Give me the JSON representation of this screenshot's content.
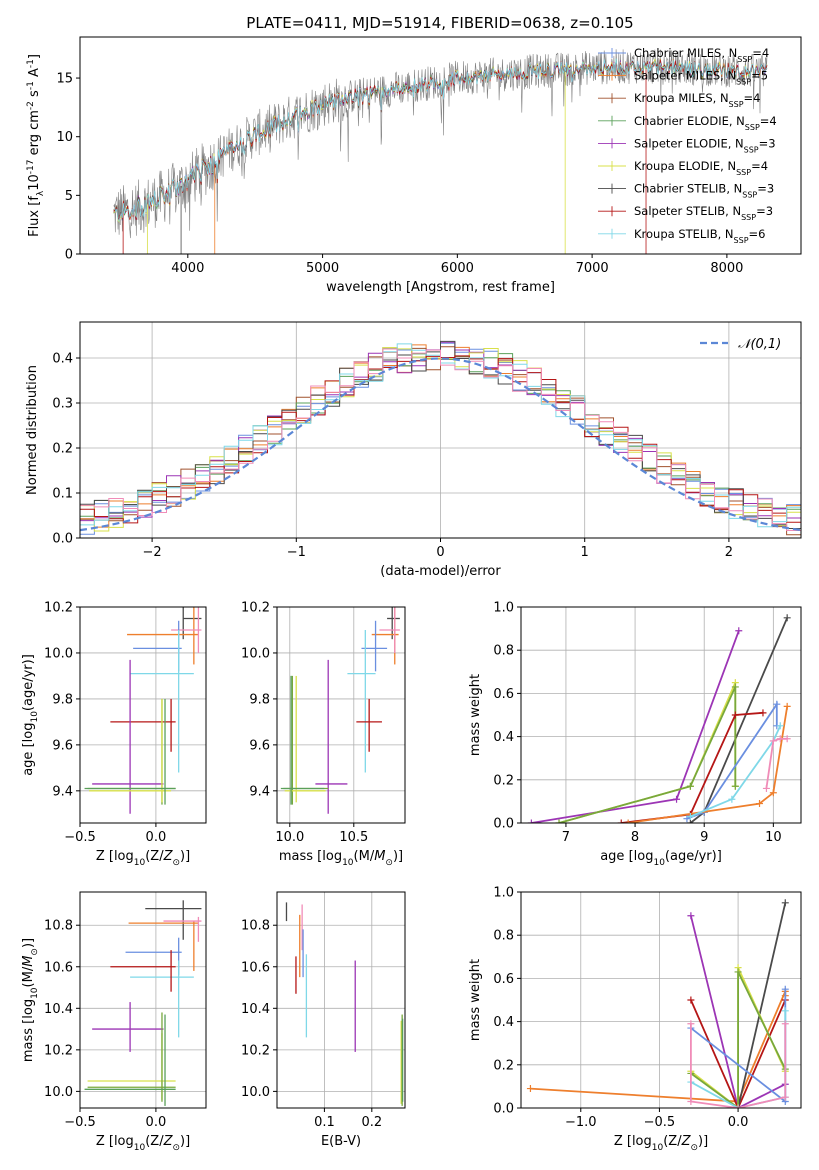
{
  "title": "PLATE=0411, MJD=51914, FIBERID=0638, z=0.105",
  "colors": {
    "spectrum": "#808080",
    "gauss": "#5b87d6",
    "grid": "#b0b0b0",
    "models": [
      "#6a8fe0",
      "#ee7f2d",
      "#a0522d",
      "#5aa05a",
      "#9c35b5",
      "#d8e04a",
      "#4a4a4a",
      "#b51616",
      "#7fd8e8"
    ],
    "extra": [
      "#f08cb8",
      "#78a83c"
    ]
  },
  "chart_data": [
    {
      "id": "spectrum",
      "type": "line",
      "xlabel": "wavelength [Angstrom, rest frame]",
      "ylabel": "Flux [f_λ10^-17 erg cm^-2 s^-1 A^-1]",
      "xlim": [
        3200,
        8550
      ],
      "ylim": [
        0,
        18.5
      ],
      "xticks": [
        4000,
        5000,
        6000,
        7000,
        8000
      ],
      "yticks": [
        0,
        5,
        10,
        15
      ],
      "legend_position": "upper-right",
      "legend": [
        {
          "base": "Chabrier MILES, N",
          "sub": "SSP",
          "tail": "=4"
        },
        {
          "base": "Salpeter MILES, N",
          "sub": "SSP",
          "tail": "=5"
        },
        {
          "base": "Kroupa MILES, N",
          "sub": "SSP",
          "tail": "=4"
        },
        {
          "base": "Chabrier ELODIE, N",
          "sub": "SSP",
          "tail": "=4"
        },
        {
          "base": "Salpeter ELODIE, N",
          "sub": "SSP",
          "tail": "=3"
        },
        {
          "base": "Kroupa ELODIE, N",
          "sub": "SSP",
          "tail": "=4"
        },
        {
          "base": "Chabrier STELIB, N",
          "sub": "SSP",
          "tail": "=3"
        },
        {
          "base": "Salpeter STELIB, N",
          "sub": "SSP",
          "tail": "=3"
        },
        {
          "base": "Kroupa STELIB, N",
          "sub": "SSP",
          "tail": "=6"
        }
      ],
      "continuum": {
        "x": [
          3450,
          3600,
          3800,
          3950,
          4100,
          4300,
          4500,
          4800,
          5000,
          5200,
          5500,
          5800,
          6000,
          6300,
          6600,
          7000,
          7300,
          7600,
          8000,
          8300
        ],
        "y": [
          3.4,
          3.8,
          4.8,
          5.8,
          7.0,
          8.8,
          10.2,
          11.8,
          12.8,
          13.4,
          14.0,
          14.6,
          15.0,
          15.3,
          15.6,
          15.9,
          16.0,
          15.9,
          15.7,
          15.5
        ]
      }
    },
    {
      "id": "residuals",
      "type": "histogram",
      "xlabel": "(data-model)/error",
      "ylabel": "Normed distribution",
      "xlim": [
        -2.5,
        2.5
      ],
      "ylim": [
        0,
        0.48
      ],
      "xticks": [
        -2,
        -1,
        0,
        1,
        2
      ],
      "yticks": [
        0.0,
        0.1,
        0.2,
        0.3,
        0.4
      ],
      "legend": "𝒩(0,1)",
      "legend_position": "upper-right",
      "bin_width": 0.1
    },
    {
      "id": "age-vs-Z",
      "type": "errorbar",
      "xlabel": "Z [log10(Z/Z⊙)]",
      "ylabel": "age [log10(age/yr)]",
      "xlim": [
        -0.5,
        0.33
      ],
      "ylim": [
        9.26,
        10.2
      ],
      "xticks": [
        -0.5,
        0.0
      ],
      "yticks": [
        9.4,
        9.6,
        9.8,
        10.0,
        10.2
      ],
      "points": [
        {
          "c": 6,
          "x": 0.18,
          "xe": [
            0.18,
            0.3
          ],
          "y": 10.15,
          "ye": [
            10.06,
            10.2
          ]
        },
        {
          "c": 1,
          "x": 0.25,
          "xe": [
            -0.19,
            0.28
          ],
          "y": 10.08,
          "ye": [
            9.95,
            10.2
          ]
        },
        {
          "c": 9,
          "x": 0.28,
          "xe": [
            0.1,
            0.3
          ],
          "y": 10.1,
          "ye": [
            10.0,
            10.2
          ]
        },
        {
          "c": 0,
          "x": 0.15,
          "xe": [
            -0.15,
            0.17
          ],
          "y": 10.02,
          "ye": [
            9.92,
            10.14
          ]
        },
        {
          "c": 8,
          "x": 0.15,
          "xe": [
            -0.17,
            0.25
          ],
          "y": 9.91,
          "ye": [
            9.48,
            10.1
          ]
        },
        {
          "c": 7,
          "x": 0.1,
          "xe": [
            -0.3,
            0.13
          ],
          "y": 9.7,
          "ye": [
            9.57,
            9.8
          ]
        },
        {
          "c": 4,
          "x": -0.17,
          "xe": [
            -0.42,
            0.05
          ],
          "y": 9.43,
          "ye": [
            9.3,
            9.97
          ]
        },
        {
          "c": 10,
          "x": 0.04,
          "xe": [
            -0.45,
            0.13
          ],
          "y": 9.41,
          "ye": [
            9.34,
            9.8
          ]
        },
        {
          "c": 5,
          "x": 0.04,
          "xe": [
            -0.44,
            0.1
          ],
          "y": 9.4,
          "ye": [
            9.35,
            9.8
          ]
        },
        {
          "c": 3,
          "x": 0.06,
          "xe": [
            -0.47,
            0.13
          ],
          "y": 9.41,
          "ye": [
            9.34,
            9.8
          ]
        }
      ]
    },
    {
      "id": "age-vs-mass",
      "type": "errorbar",
      "xlabel": "mass [log10(M/M⊙)]",
      "ylabel": "",
      "xlim": [
        9.9,
        10.9
      ],
      "ylim": [
        9.26,
        10.2
      ],
      "xticks": [
        10.0,
        10.5
      ],
      "yticks": [
        9.4,
        9.6,
        9.8,
        10.0,
        10.2
      ],
      "points": [
        {
          "c": 6,
          "x": 10.8,
          "xe": [
            10.76,
            10.86
          ],
          "y": 10.15,
          "ye": [
            10.06,
            10.2
          ]
        },
        {
          "c": 1,
          "x": 10.82,
          "xe": [
            10.64,
            10.85
          ],
          "y": 10.08,
          "ye": [
            9.95,
            10.2
          ]
        },
        {
          "c": 9,
          "x": 10.82,
          "xe": [
            10.7,
            10.86
          ],
          "y": 10.1,
          "ye": [
            10.0,
            10.2
          ]
        },
        {
          "c": 0,
          "x": 10.67,
          "xe": [
            10.56,
            10.76
          ],
          "y": 10.02,
          "ye": [
            9.92,
            10.14
          ]
        },
        {
          "c": 8,
          "x": 10.59,
          "xe": [
            10.45,
            10.67
          ],
          "y": 9.91,
          "ye": [
            9.48,
            10.1
          ]
        },
        {
          "c": 7,
          "x": 10.62,
          "xe": [
            10.52,
            10.72
          ],
          "y": 9.7,
          "ye": [
            9.57,
            9.8
          ]
        },
        {
          "c": 4,
          "x": 10.3,
          "xe": [
            10.2,
            10.45
          ],
          "y": 9.43,
          "ye": [
            9.3,
            9.97
          ]
        },
        {
          "c": 10,
          "x": 10.02,
          "xe": [
            9.95,
            10.3
          ],
          "y": 9.41,
          "ye": [
            9.34,
            9.9
          ]
        },
        {
          "c": 5,
          "x": 10.05,
          "xe": [
            9.96,
            10.28
          ],
          "y": 9.4,
          "ye": [
            9.35,
            9.9
          ]
        },
        {
          "c": 3,
          "x": 10.01,
          "xe": [
            9.93,
            10.27
          ],
          "y": 9.41,
          "ye": [
            9.34,
            9.9
          ]
        }
      ]
    },
    {
      "id": "mass-weight-vs-age",
      "type": "line",
      "xlabel": "age [log10(age/yr)]",
      "ylabel": "mass weight",
      "xlim": [
        6.35,
        10.4
      ],
      "ylim": [
        0,
        1.0
      ],
      "xticks": [
        7,
        8,
        9,
        10
      ],
      "yticks": [
        0.0,
        0.2,
        0.4,
        0.6,
        0.8,
        1.0
      ],
      "series": [
        {
          "c": 6,
          "x": [
            8.8,
            9.0,
            10.2
          ],
          "y": [
            0.0,
            0.05,
            0.95
          ]
        },
        {
          "c": 4,
          "x": [
            6.5,
            8.6,
            9.5
          ],
          "y": [
            0.0,
            0.11,
            0.89
          ]
        },
        {
          "c": 5,
          "x": [
            6.9,
            8.8,
            9.45,
            9.45
          ],
          "y": [
            0.0,
            0.17,
            0.65,
            0.17
          ]
        },
        {
          "c": 10,
          "x": [
            6.9,
            8.8,
            9.45,
            9.45
          ],
          "y": [
            0.0,
            0.17,
            0.63,
            0.17
          ]
        },
        {
          "c": 7,
          "x": [
            7.8,
            8.8,
            9.45,
            9.85
          ],
          "y": [
            0.0,
            0.04,
            0.5,
            0.51
          ]
        },
        {
          "c": 0,
          "x": [
            8.75,
            9.0,
            10.05,
            10.05
          ],
          "y": [
            0.02,
            0.05,
            0.55,
            0.45
          ]
        },
        {
          "c": 1,
          "x": [
            7.9,
            9.8,
            10.0,
            10.2
          ],
          "y": [
            0.0,
            0.09,
            0.14,
            0.54
          ]
        },
        {
          "c": 8,
          "x": [
            8.8,
            9.4,
            10.0,
            10.1
          ],
          "y": [
            0.03,
            0.11,
            0.38,
            0.45
          ]
        },
        {
          "c": 9,
          "x": [
            9.9,
            10.0,
            10.1,
            10.2
          ],
          "y": [
            0.16,
            0.38,
            0.39,
            0.39
          ]
        }
      ]
    },
    {
      "id": "mass-vs-Z",
      "type": "errorbar",
      "xlabel": "Z [log10(Z/Z⊙)]",
      "ylabel": "mass [log10(M/M⊙)]",
      "xlim": [
        -0.5,
        0.33
      ],
      "ylim": [
        9.92,
        10.96
      ],
      "xticks": [
        -0.5,
        0.0
      ],
      "yticks": [
        10.0,
        10.2,
        10.4,
        10.6,
        10.8
      ],
      "points": [
        {
          "c": 6,
          "x": 0.18,
          "xe": [
            -0.07,
            0.3
          ],
          "y": 10.88,
          "ye": [
            10.73,
            10.92
          ]
        },
        {
          "c": 1,
          "x": 0.25,
          "xe": [
            -0.18,
            0.28
          ],
          "y": 10.81,
          "ye": [
            10.58,
            10.82
          ]
        },
        {
          "c": 9,
          "x": 0.28,
          "xe": [
            0.05,
            0.3
          ],
          "y": 10.82,
          "ye": [
            10.72,
            10.84
          ]
        },
        {
          "c": 0,
          "x": 0.15,
          "xe": [
            -0.2,
            0.17
          ],
          "y": 10.67,
          "ye": [
            10.56,
            10.74
          ]
        },
        {
          "c": 8,
          "x": 0.15,
          "xe": [
            -0.17,
            0.25
          ],
          "y": 10.55,
          "ye": [
            10.26,
            10.63
          ]
        },
        {
          "c": 7,
          "x": 0.1,
          "xe": [
            -0.3,
            0.13
          ],
          "y": 10.6,
          "ye": [
            10.48,
            10.68
          ]
        },
        {
          "c": 4,
          "x": -0.17,
          "xe": [
            -0.42,
            0.05
          ],
          "y": 10.3,
          "ye": [
            10.19,
            10.43
          ]
        },
        {
          "c": 5,
          "x": 0.04,
          "xe": [
            -0.45,
            0.13
          ],
          "y": 10.05,
          "ye": [
            9.96,
            10.28
          ]
        },
        {
          "c": 10,
          "x": 0.04,
          "xe": [
            -0.45,
            0.13
          ],
          "y": 10.02,
          "ye": [
            9.95,
            10.38
          ]
        },
        {
          "c": 3,
          "x": 0.06,
          "xe": [
            -0.47,
            0.13
          ],
          "y": 10.01,
          "ye": [
            9.93,
            10.37
          ]
        }
      ]
    },
    {
      "id": "mass-vs-EBV",
      "type": "errorbar",
      "xlabel": "E(B-V)",
      "ylabel": "",
      "xlim": [
        0.0,
        0.27
      ],
      "ylim": [
        9.92,
        10.96
      ],
      "xticks": [
        0.1,
        0.2
      ],
      "yticks": [
        10.0,
        10.2,
        10.4,
        10.6,
        10.8
      ],
      "points": [
        {
          "c": 6,
          "x": 0.02,
          "ye": [
            10.82,
            10.91
          ]
        },
        {
          "c": 7,
          "x": 0.04,
          "ye": [
            10.47,
            10.65
          ]
        },
        {
          "c": 1,
          "x": 0.048,
          "ye": [
            10.55,
            10.85
          ]
        },
        {
          "c": 9,
          "x": 0.053,
          "ye": [
            10.68,
            10.9
          ]
        },
        {
          "c": 0,
          "x": 0.055,
          "ye": [
            10.55,
            10.78
          ]
        },
        {
          "c": 8,
          "x": 0.062,
          "ye": [
            10.26,
            10.66
          ]
        },
        {
          "c": 4,
          "x": 0.165,
          "ye": [
            10.19,
            10.63
          ]
        },
        {
          "c": 5,
          "x": 0.262,
          "ye": [
            9.94,
            10.34
          ]
        },
        {
          "c": 10,
          "x": 0.264,
          "ye": [
            9.93,
            10.37
          ]
        },
        {
          "c": 3,
          "x": 0.265,
          "ye": [
            9.95,
            10.35
          ]
        }
      ]
    },
    {
      "id": "mass-weight-vs-Z",
      "type": "line",
      "xlabel": "Z [log10(Z/Z⊙)]",
      "ylabel": "mass weight",
      "xlim": [
        -1.38,
        0.4
      ],
      "ylim": [
        0,
        1.0
      ],
      "xticks": [
        -1.0,
        -0.5,
        0.0
      ],
      "yticks": [
        0.0,
        0.2,
        0.4,
        0.6,
        0.8,
        1.0
      ],
      "series": [
        {
          "c": 1,
          "x": [
            -1.32,
            0.0,
            0.3,
            0.3
          ],
          "y": [
            0.09,
            0.03,
            0.54,
            0.52
          ]
        },
        {
          "c": 4,
          "x": [
            -0.3,
            0.0,
            0.3
          ],
          "y": [
            0.89,
            0.0,
            0.11
          ]
        },
        {
          "c": 7,
          "x": [
            -0.3,
            0.0,
            0.3
          ],
          "y": [
            0.5,
            0.0,
            0.5
          ]
        },
        {
          "c": 6,
          "x": [
            0.0,
            0.3
          ],
          "y": [
            0.0,
            0.95
          ]
        },
        {
          "c": 5,
          "x": [
            -0.3,
            0.0,
            0.0,
            0.3
          ],
          "y": [
            0.17,
            0.0,
            0.65,
            0.17
          ]
        },
        {
          "c": 10,
          "x": [
            -0.3,
            0.0,
            0.0,
            0.3
          ],
          "y": [
            0.16,
            0.0,
            0.63,
            0.18
          ]
        },
        {
          "c": 0,
          "x": [
            -0.3,
            0.3,
            0.3
          ],
          "y": [
            0.37,
            0.03,
            0.55
          ]
        },
        {
          "c": 8,
          "x": [
            -0.3,
            0.0,
            0.3,
            0.3
          ],
          "y": [
            0.12,
            0.0,
            0.05,
            0.45
          ]
        },
        {
          "c": 9,
          "x": [
            -0.3,
            -0.3,
            0.0,
            0.3,
            0.3
          ],
          "y": [
            0.39,
            0.03,
            0.0,
            0.05,
            0.39
          ]
        }
      ]
    }
  ]
}
